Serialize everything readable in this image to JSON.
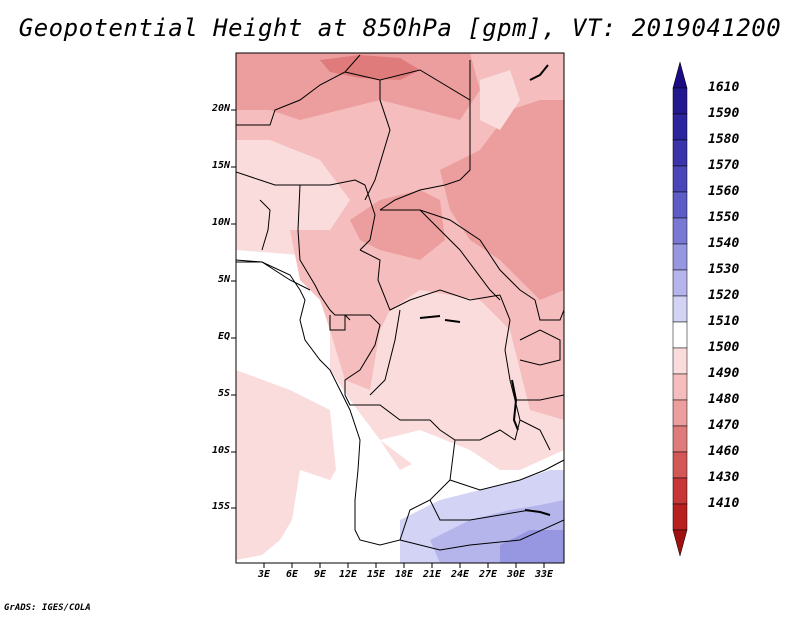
{
  "title": "Geopotential Height at 850hPa [gpm], VT: 2019041200",
  "credit": "GrADS: IGES/COLA",
  "map": {
    "lat_labels": [
      "20N",
      "15N",
      "10N",
      "5N",
      "EQ",
      "5S",
      "10S",
      "15S"
    ],
    "lon_labels": [
      "3E",
      "6E",
      "9E",
      "12E",
      "15E",
      "18E",
      "21E",
      "24E",
      "27E",
      "30E",
      "33E"
    ]
  },
  "colorbar": {
    "levels": [
      "1610",
      "1590",
      "1580",
      "1570",
      "1560",
      "1550",
      "1540",
      "1530",
      "1520",
      "1510",
      "1500",
      "1490",
      "1480",
      "1470",
      "1460",
      "1430",
      "1410"
    ],
    "colors": {
      "top_triangle": "#1a0c80",
      "boxes": [
        "#22188f",
        "#2c249c",
        "#3a33aa",
        "#4a45b8",
        "#5e5cc6",
        "#7978d4",
        "#9796e0",
        "#b5b5ec",
        "#d3d3f5",
        "#ffffff",
        "#fbdcdc",
        "#f5bdbd",
        "#ec9d9d",
        "#e07b7b",
        "#d45757",
        "#c63636",
        "#b82020"
      ],
      "bottom_triangle": "#a01010"
    }
  },
  "field_colors": {
    "white": "#ffffff",
    "lightest_pink": "#fbdcdc",
    "light_pink": "#f5bdbd",
    "pink": "#ec9d9d",
    "red": "#e07b7b",
    "pale_blue": "#d3d3f5",
    "light_blue": "#b5b5ec",
    "blue": "#9796e0"
  }
}
